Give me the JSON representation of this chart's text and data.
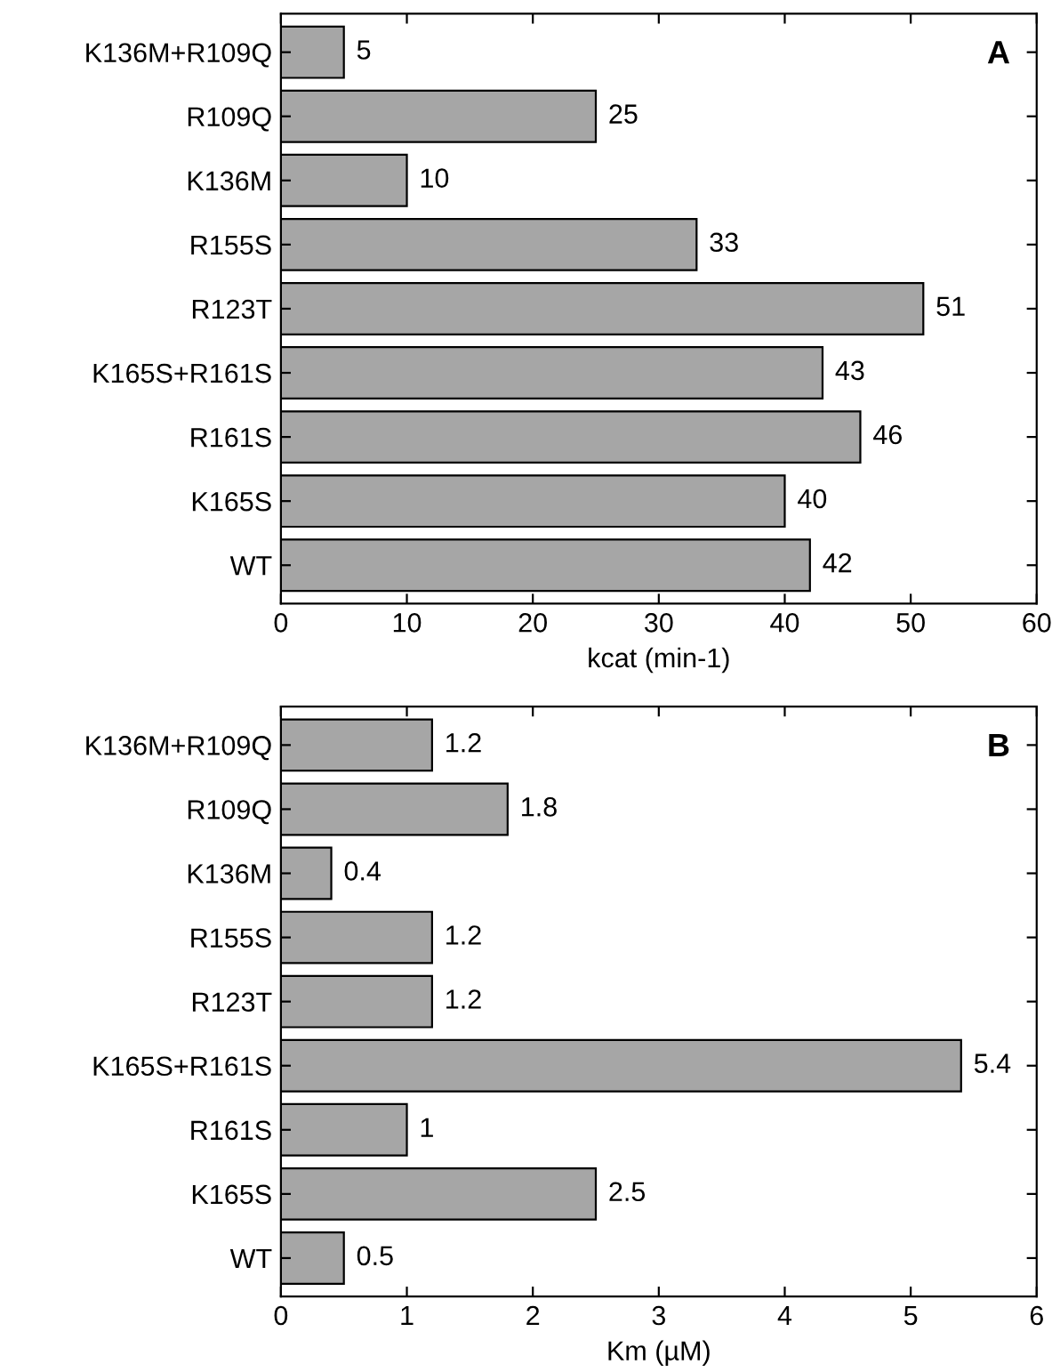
{
  "chart_data": [
    {
      "type": "bar",
      "orientation": "horizontal",
      "categories": [
        "K136M+R109Q",
        "R109Q",
        "K136M",
        "R155S",
        "R123T",
        "K165S+R161S",
        "R161S",
        "K165S",
        "WT"
      ],
      "series": [
        {
          "color": "#a6a6a6",
          "values": [
            5,
            25,
            10,
            33,
            51,
            43,
            46,
            40,
            42
          ]
        }
      ],
      "xlabel": "kcat (min-1)",
      "xlim": [
        0,
        60
      ],
      "xticks": [
        0,
        10,
        20,
        30,
        40,
        50,
        60
      ],
      "data_labels": true,
      "annotations": [
        "A"
      ]
    },
    {
      "type": "bar",
      "orientation": "horizontal",
      "categories": [
        "K136M+R109Q",
        "R109Q",
        "K136M",
        "R155S",
        "R123T",
        "K165S+R161S",
        "R161S",
        "K165S",
        "WT"
      ],
      "series": [
        {
          "color": "#a6a6a6",
          "values": [
            1.2,
            1.8,
            0.4,
            1.2,
            1.2,
            5.4,
            1,
            2.5,
            0.5
          ]
        }
      ],
      "xlabel": "Km (µM)",
      "xlim": [
        0,
        6
      ],
      "xticks": [
        0,
        1,
        2,
        3,
        4,
        5,
        6
      ],
      "data_labels": true,
      "annotations": [
        "B"
      ]
    }
  ]
}
